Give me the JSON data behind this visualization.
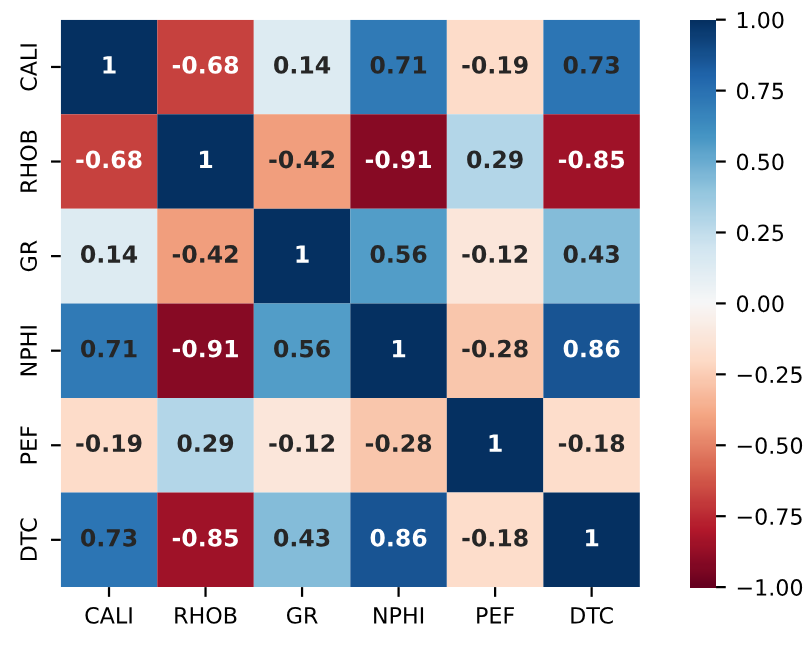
{
  "chart_data": {
    "type": "heatmap",
    "categories": [
      "CALI",
      "RHOB",
      "GR",
      "NPHI",
      "PEF",
      "DTC"
    ],
    "y_categories": [
      "CALI",
      "RHOB",
      "GR",
      "NPHI",
      "PEF",
      "DTC"
    ],
    "cells": [
      [
        1,
        -0.68,
        0.14,
        0.71,
        -0.19,
        0.73
      ],
      [
        -0.68,
        1,
        -0.42,
        -0.91,
        0.29,
        -0.85
      ],
      [
        0.14,
        -0.42,
        1,
        0.56,
        -0.12,
        0.43
      ],
      [
        0.71,
        -0.91,
        0.56,
        1,
        -0.28,
        0.86
      ],
      [
        -0.19,
        0.29,
        -0.12,
        -0.28,
        1,
        -0.18
      ],
      [
        0.73,
        -0.85,
        0.43,
        0.86,
        -0.18,
        1
      ]
    ],
    "clim": [
      -1,
      1
    ],
    "cticks": [
      {
        "value": -1,
        "label": "−1.00"
      },
      {
        "value": -0.75,
        "label": "−0.75"
      },
      {
        "value": -0.5,
        "label": "−0.50"
      },
      {
        "value": -0.25,
        "label": "−0.25"
      },
      {
        "value": 0,
        "label": "0.00"
      },
      {
        "value": 0.25,
        "label": "0.25"
      },
      {
        "value": 0.5,
        "label": "0.50"
      },
      {
        "value": 0.75,
        "label": "0.75"
      },
      {
        "value": 1,
        "label": "1.00"
      }
    ],
    "data_labels": true
  }
}
